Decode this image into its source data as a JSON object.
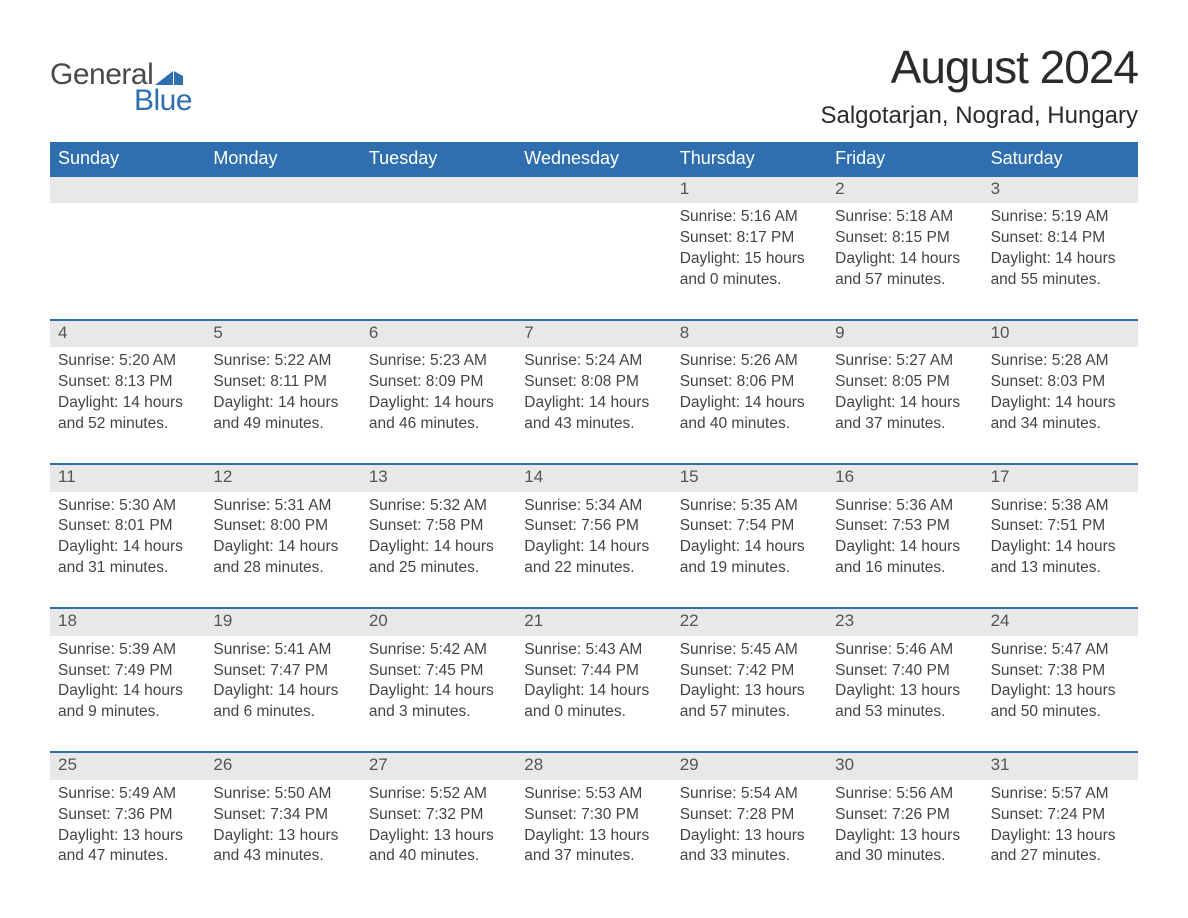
{
  "logo": {
    "general": "General",
    "blue": "Blue"
  },
  "title": {
    "month": "August 2024",
    "location": "Salgotarjan, Nograd, Hungary"
  },
  "weekdays": [
    "Sunday",
    "Monday",
    "Tuesday",
    "Wednesday",
    "Thursday",
    "Friday",
    "Saturday"
  ],
  "colors": {
    "header_bg": "#2f6fb0",
    "header_text": "#ffffff",
    "daynum_bg": "#e8e8e8",
    "daynum_text": "#555555",
    "body_text": "#444444",
    "rule": "#2f6fb0",
    "logo_gray": "#4a4a4a",
    "logo_blue": "#2f6fb0",
    "page_bg": "#ffffff"
  },
  "layout": {
    "columns": 7,
    "rows": 5,
    "first_weekday_index": 4
  },
  "font": {
    "title_size_pt": 34,
    "location_size_pt": 18,
    "weekday_size_pt": 14,
    "body_size_pt": 11
  },
  "days": [
    {
      "n": "1",
      "sunrise": "5:16 AM",
      "sunset": "8:17 PM",
      "daylight": "15 hours and 0 minutes."
    },
    {
      "n": "2",
      "sunrise": "5:18 AM",
      "sunset": "8:15 PM",
      "daylight": "14 hours and 57 minutes."
    },
    {
      "n": "3",
      "sunrise": "5:19 AM",
      "sunset": "8:14 PM",
      "daylight": "14 hours and 55 minutes."
    },
    {
      "n": "4",
      "sunrise": "5:20 AM",
      "sunset": "8:13 PM",
      "daylight": "14 hours and 52 minutes."
    },
    {
      "n": "5",
      "sunrise": "5:22 AM",
      "sunset": "8:11 PM",
      "daylight": "14 hours and 49 minutes."
    },
    {
      "n": "6",
      "sunrise": "5:23 AM",
      "sunset": "8:09 PM",
      "daylight": "14 hours and 46 minutes."
    },
    {
      "n": "7",
      "sunrise": "5:24 AM",
      "sunset": "8:08 PM",
      "daylight": "14 hours and 43 minutes."
    },
    {
      "n": "8",
      "sunrise": "5:26 AM",
      "sunset": "8:06 PM",
      "daylight": "14 hours and 40 minutes."
    },
    {
      "n": "9",
      "sunrise": "5:27 AM",
      "sunset": "8:05 PM",
      "daylight": "14 hours and 37 minutes."
    },
    {
      "n": "10",
      "sunrise": "5:28 AM",
      "sunset": "8:03 PM",
      "daylight": "14 hours and 34 minutes."
    },
    {
      "n": "11",
      "sunrise": "5:30 AM",
      "sunset": "8:01 PM",
      "daylight": "14 hours and 31 minutes."
    },
    {
      "n": "12",
      "sunrise": "5:31 AM",
      "sunset": "8:00 PM",
      "daylight": "14 hours and 28 minutes."
    },
    {
      "n": "13",
      "sunrise": "5:32 AM",
      "sunset": "7:58 PM",
      "daylight": "14 hours and 25 minutes."
    },
    {
      "n": "14",
      "sunrise": "5:34 AM",
      "sunset": "7:56 PM",
      "daylight": "14 hours and 22 minutes."
    },
    {
      "n": "15",
      "sunrise": "5:35 AM",
      "sunset": "7:54 PM",
      "daylight": "14 hours and 19 minutes."
    },
    {
      "n": "16",
      "sunrise": "5:36 AM",
      "sunset": "7:53 PM",
      "daylight": "14 hours and 16 minutes."
    },
    {
      "n": "17",
      "sunrise": "5:38 AM",
      "sunset": "7:51 PM",
      "daylight": "14 hours and 13 minutes."
    },
    {
      "n": "18",
      "sunrise": "5:39 AM",
      "sunset": "7:49 PM",
      "daylight": "14 hours and 9 minutes."
    },
    {
      "n": "19",
      "sunrise": "5:41 AM",
      "sunset": "7:47 PM",
      "daylight": "14 hours and 6 minutes."
    },
    {
      "n": "20",
      "sunrise": "5:42 AM",
      "sunset": "7:45 PM",
      "daylight": "14 hours and 3 minutes."
    },
    {
      "n": "21",
      "sunrise": "5:43 AM",
      "sunset": "7:44 PM",
      "daylight": "14 hours and 0 minutes."
    },
    {
      "n": "22",
      "sunrise": "5:45 AM",
      "sunset": "7:42 PM",
      "daylight": "13 hours and 57 minutes."
    },
    {
      "n": "23",
      "sunrise": "5:46 AM",
      "sunset": "7:40 PM",
      "daylight": "13 hours and 53 minutes."
    },
    {
      "n": "24",
      "sunrise": "5:47 AM",
      "sunset": "7:38 PM",
      "daylight": "13 hours and 50 minutes."
    },
    {
      "n": "25",
      "sunrise": "5:49 AM",
      "sunset": "7:36 PM",
      "daylight": "13 hours and 47 minutes."
    },
    {
      "n": "26",
      "sunrise": "5:50 AM",
      "sunset": "7:34 PM",
      "daylight": "13 hours and 43 minutes."
    },
    {
      "n": "27",
      "sunrise": "5:52 AM",
      "sunset": "7:32 PM",
      "daylight": "13 hours and 40 minutes."
    },
    {
      "n": "28",
      "sunrise": "5:53 AM",
      "sunset": "7:30 PM",
      "daylight": "13 hours and 37 minutes."
    },
    {
      "n": "29",
      "sunrise": "5:54 AM",
      "sunset": "7:28 PM",
      "daylight": "13 hours and 33 minutes."
    },
    {
      "n": "30",
      "sunrise": "5:56 AM",
      "sunset": "7:26 PM",
      "daylight": "13 hours and 30 minutes."
    },
    {
      "n": "31",
      "sunrise": "5:57 AM",
      "sunset": "7:24 PM",
      "daylight": "13 hours and 27 minutes."
    }
  ],
  "labels": {
    "sunrise": "Sunrise: ",
    "sunset": "Sunset: ",
    "daylight": "Daylight: "
  }
}
